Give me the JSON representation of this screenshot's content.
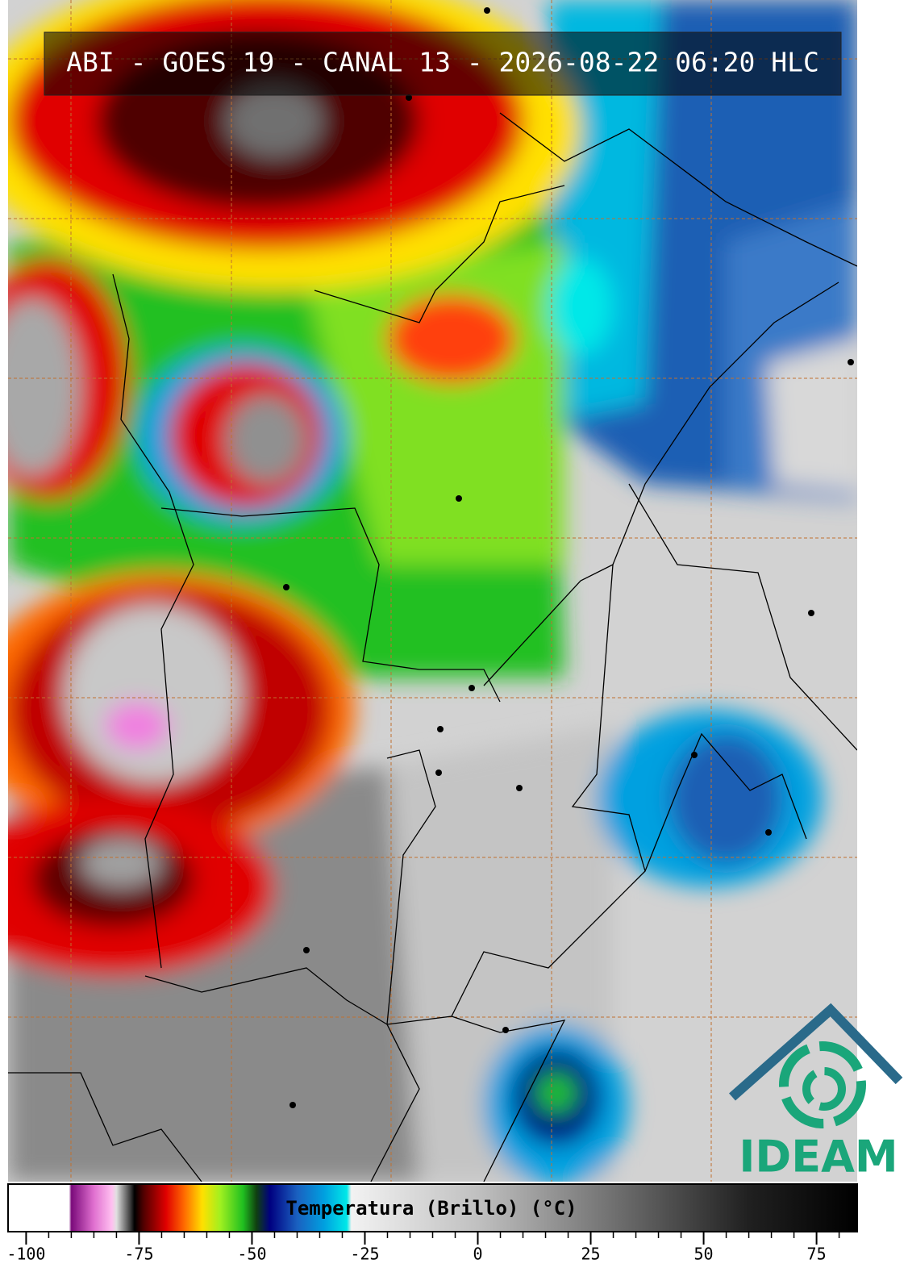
{
  "header": {
    "title": "ABI - GOES 19 - CANAL 13 - 2026-08-22 06:20 HLC"
  },
  "logo": {
    "text": "IDEAM"
  },
  "colorbar": {
    "type": "colorbar",
    "label": "Temperatura (Brillo) (°C)",
    "xlim": [
      -104,
      84
    ],
    "xticks": [
      -100,
      -75,
      -50,
      -25,
      0,
      25,
      50,
      75
    ],
    "minor_xticks": [
      -95,
      -90,
      -85,
      -80,
      -70,
      -65,
      -60,
      -55,
      -45,
      -40,
      -35,
      -30,
      -20,
      -15,
      -10,
      -5,
      5,
      10,
      15,
      20,
      30,
      35,
      40,
      45,
      55,
      60,
      65,
      70,
      80
    ],
    "stops": [
      {
        "value": -104,
        "color": "#ffffff"
      },
      {
        "value": -90.5,
        "color": "#ffffff"
      },
      {
        "value": -90,
        "color": "#7a0a7a"
      },
      {
        "value": -85,
        "color": "#e070d0"
      },
      {
        "value": -81,
        "color": "#ffc0f0"
      },
      {
        "value": -80,
        "color": "#e0e0e0"
      },
      {
        "value": -77,
        "color": "#404040"
      },
      {
        "value": -76,
        "color": "#000000"
      },
      {
        "value": -74,
        "color": "#500000"
      },
      {
        "value": -69,
        "color": "#e00000"
      },
      {
        "value": -65,
        "color": "#ff6a00"
      },
      {
        "value": -61,
        "color": "#ffe000"
      },
      {
        "value": -57,
        "color": "#a0f020"
      },
      {
        "value": -52,
        "color": "#20c020"
      },
      {
        "value": -49,
        "color": "#104010"
      },
      {
        "value": -46,
        "color": "#000080"
      },
      {
        "value": -40,
        "color": "#1a60c0"
      },
      {
        "value": -34,
        "color": "#00a0e0"
      },
      {
        "value": -29,
        "color": "#00e8e8"
      },
      {
        "value": -28,
        "color": "#f2f2f2"
      },
      {
        "value": 0,
        "color": "#c0c0c0"
      },
      {
        "value": 30,
        "color": "#707070"
      },
      {
        "value": 60,
        "color": "#202020"
      },
      {
        "value": 84,
        "color": "#000000"
      }
    ]
  }
}
